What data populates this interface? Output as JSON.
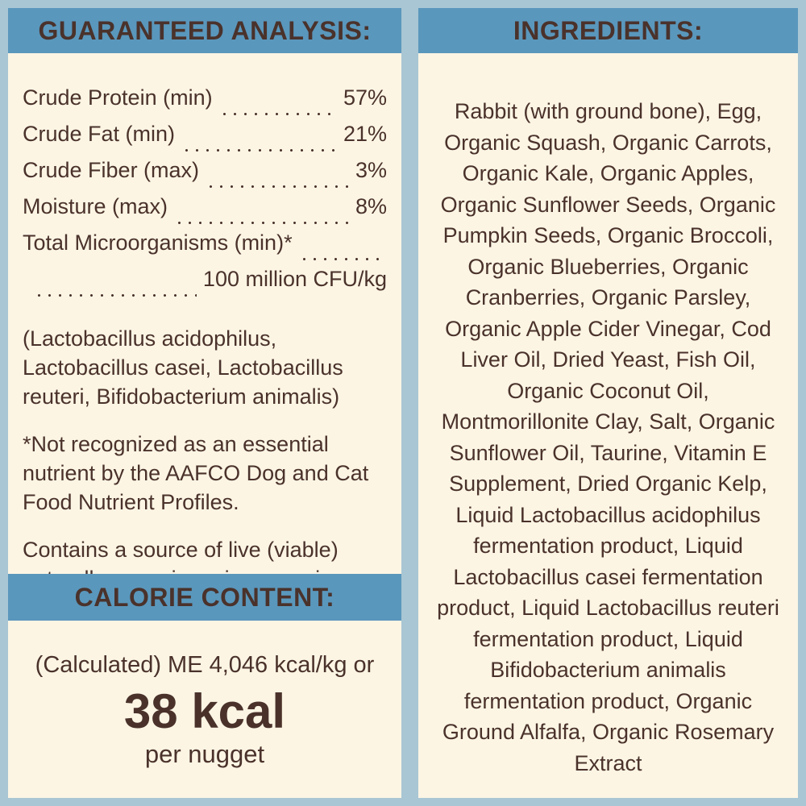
{
  "colors": {
    "outer_bg": "#a9c6d4",
    "panel_bg": "#fcf5e4",
    "header_bg": "#5a97bc",
    "text": "#4a322b"
  },
  "guaranteed_analysis": {
    "title": "GUARANTEED ANALYSIS:",
    "rows": [
      {
        "label": "Crude Protein (min)",
        "value": "57%"
      },
      {
        "label": "Crude Fat (min)",
        "value": "21%"
      },
      {
        "label": "Crude Fiber (max)",
        "value": "3%"
      },
      {
        "label": "Moisture (max)",
        "value": "8%"
      }
    ],
    "microorganisms": {
      "label": "Total Microorganisms (min)*",
      "value": "100 million CFU/kg"
    },
    "notes": [
      "(Lactobacillus acidophilus, Lactobacillus casei, Lactobacillus reuteri, Bifidobacterium animalis)",
      "*Not recognized as an essential nutrient by the AAFCO Dog and Cat Food Nutrient Profiles.",
      "Contains a source of live (viable) naturally occurring microorganisms"
    ]
  },
  "calorie_content": {
    "title": "CALORIE CONTENT:",
    "line1": "(Calculated) ME 4,046 kcal/kg or",
    "value": "38 kcal",
    "unit": "per nugget"
  },
  "ingredients": {
    "title": "INGREDIENTS:",
    "text": "Rabbit (with ground bone), Egg, Organic Squash, Organic Carrots, Organic Kale, Organic Apples, Organic Sunflower Seeds, Organic Pumpkin Seeds, Organic Broccoli, Organic Blueberries, Organic Cranberries, Organic Parsley, Organic Apple Cider Vinegar, Cod Liver Oil, Dried Yeast, Fish Oil, Organic Coconut Oil, Montmorillonite Clay, Salt, Organic Sunflower Oil, Taurine, Vitamin E Supplement, Dried Organic Kelp, Liquid Lactobacillus acidophilus fermentation product, Liquid Lactobacillus casei fermentation product, Liquid Lactobacillus reuteri fermentation product, Liquid Bifidobacterium animalis fermentation product, Organic Ground Alfalfa, Organic Rosemary Extract"
  }
}
